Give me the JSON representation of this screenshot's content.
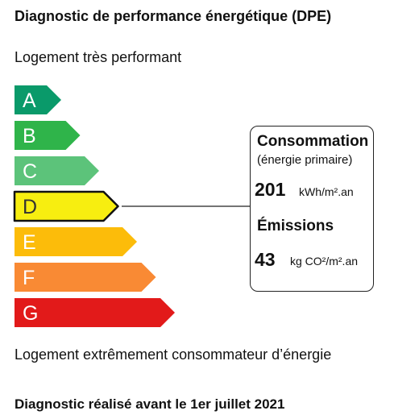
{
  "header": {
    "title": "Diagnostic de performance énergétique (DPE)",
    "top_label": "Logement très performant",
    "bottom_label": "Logement extrêmement consommateur d’énergie",
    "footer": "Diagnostic réalisé avant le 1er juillet 2021"
  },
  "scale": {
    "selected": "D",
    "classes": [
      {
        "letter": "A",
        "color": "#0a9a6a"
      },
      {
        "letter": "B",
        "color": "#2fb44a"
      },
      {
        "letter": "C",
        "color": "#5cc37a"
      },
      {
        "letter": "D",
        "color": "#f7ee10"
      },
      {
        "letter": "E",
        "color": "#fcbc0a"
      },
      {
        "letter": "F",
        "color": "#f98a34"
      },
      {
        "letter": "G",
        "color": "#e21a1a"
      }
    ]
  },
  "info": {
    "consumption_label": "Consommation",
    "consumption_sub": "(énergie primaire)",
    "consumption_value": "201",
    "consumption_unit": "kWh/m².an",
    "emissions_label": "Émissions",
    "emissions_value": "43",
    "emissions_unit": "kg CO²/m².an"
  }
}
